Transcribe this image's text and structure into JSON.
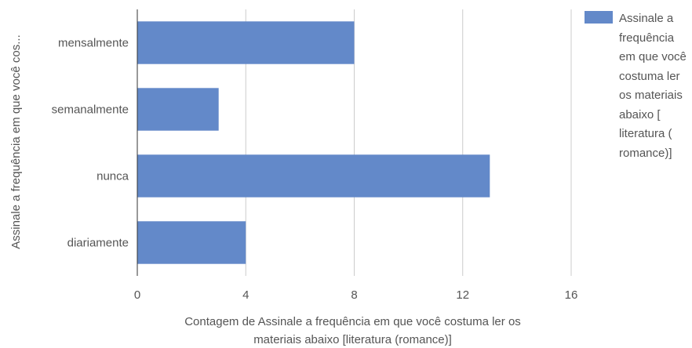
{
  "chart_data": {
    "type": "bar",
    "orientation": "horizontal",
    "categories": [
      "mensalmente",
      "semanalmente",
      "nunca",
      "diariamente"
    ],
    "series": [
      {
        "name": "Assinale a frequência em que você costuma ler os materiais abaixo [ literatura ( romance)]",
        "color": "#6389c9",
        "values": [
          8,
          3,
          13,
          4
        ]
      }
    ],
    "title": "",
    "xlabel": "Contagem de Assinale a frequência em que você costuma ler os materiais abaixo [literatura (romance)]",
    "ylabel": "Assinale a frequência em que você cos...",
    "xlim": [
      0,
      16
    ],
    "xticks": [
      0,
      4,
      8,
      12,
      16
    ],
    "grid": true,
    "legend_position": "right"
  }
}
